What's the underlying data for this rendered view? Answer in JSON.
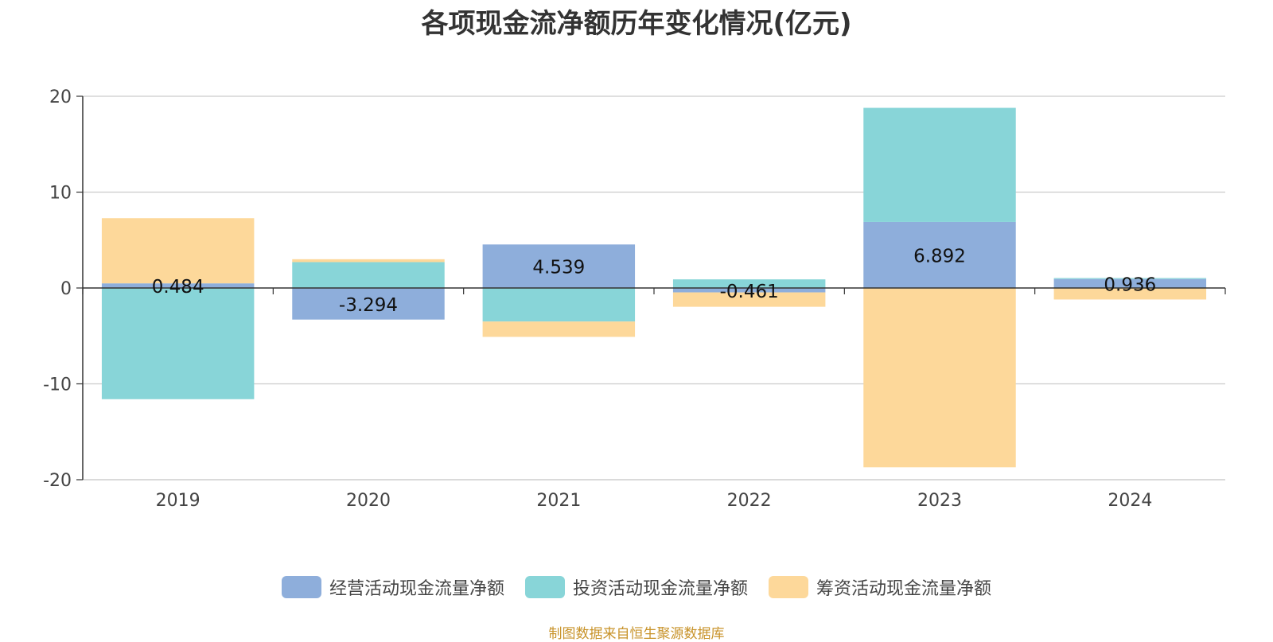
{
  "chart_data": {
    "type": "bar",
    "stacked": true,
    "title": "各项现金流净额历年变化情况(亿元)",
    "categories": [
      "2019",
      "2020",
      "2021",
      "2022",
      "2023",
      "2024"
    ],
    "ylim": [
      -20,
      20
    ],
    "yticks": [
      "20",
      "10",
      "0",
      "-10",
      "-20"
    ],
    "grid": true,
    "legend_position": "bottom-center",
    "series": [
      {
        "name": "经营活动现金流量净额",
        "color": "#8eaedb",
        "values": [
          0.484,
          -3.294,
          4.539,
          -0.461,
          6.892,
          0.936
        ],
        "labels": [
          "0.484",
          "-3.294",
          "4.539",
          "-0.461",
          "6.892",
          "0.936"
        ]
      },
      {
        "name": "投资活动现金流量净额",
        "color": "#88d5d8",
        "values": [
          -11.6,
          2.7,
          -3.5,
          0.9,
          11.9,
          0.1
        ]
      },
      {
        "name": "筹资活动现金流量净额",
        "color": "#fdd89a",
        "values": [
          6.8,
          0.3,
          -1.6,
          -1.5,
          -18.7,
          -1.2
        ]
      }
    ]
  },
  "source_note": "制图数据来自恒生聚源数据库"
}
